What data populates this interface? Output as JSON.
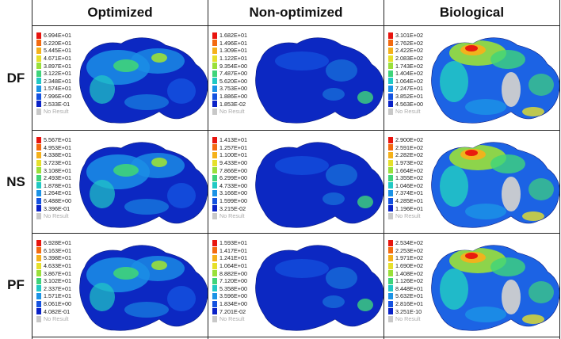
{
  "headers": {
    "col1": "Optimized",
    "col2": "Non-optimized",
    "col3": "Biological"
  },
  "row_labels": {
    "row1": "DF",
    "row2": "NS",
    "row3": "PF"
  },
  "no_result_label": "No Result",
  "legend_colors": [
    "#e8140e",
    "#f36a10",
    "#f5b11a",
    "#e6e02a",
    "#9ae03a",
    "#3fd47a",
    "#21c9c4",
    "#1b93e6",
    "#1452e0",
    "#0a22c8",
    "#0b0aa6",
    "#c8c8c8"
  ],
  "panels": {
    "df_opt": {
      "values": [
        "6.994E+01",
        "6.220E+01",
        "5.445E+01",
        "4.671E+01",
        "3.897E+01",
        "3.122E+01",
        "2.348E+01",
        "1.574E+01",
        "7.996E+00",
        "2.533E-01"
      ]
    },
    "df_non": {
      "values": [
        "1.682E+01",
        "1.496E+01",
        "1.309E+01",
        "1.122E+01",
        "9.354E+00",
        "7.487E+00",
        "5.620E+00",
        "3.753E+00",
        "1.886E+00",
        "1.853E-02"
      ]
    },
    "df_bio": {
      "values": [
        "3.101E+02",
        "2.762E+02",
        "2.422E+02",
        "2.083E+02",
        "1.743E+02",
        "1.404E+02",
        "1.064E+02",
        "7.247E+01",
        "3.852E+01",
        "4.563E+00"
      ]
    },
    "ns_opt": {
      "values": [
        "5.567E+01",
        "4.953E+01",
        "4.338E+01",
        "3.723E+01",
        "3.108E+01",
        "2.493E+01",
        "1.878E+01",
        "1.264E+01",
        "6.488E+00",
        "3.396E-01"
      ]
    },
    "ns_non": {
      "values": [
        "1.413E+01",
        "1.257E+01",
        "1.100E+01",
        "9.433E+00",
        "7.866E+00",
        "6.299E+00",
        "4.733E+00",
        "3.166E+00",
        "1.599E+00",
        "3.215E-02"
      ]
    },
    "ns_bio": {
      "values": [
        "2.900E+02",
        "2.591E+02",
        "2.282E+02",
        "1.973E+02",
        "1.664E+02",
        "1.355E+02",
        "1.046E+02",
        "7.374E+01",
        "4.285E+01",
        "1.196E+01"
      ]
    },
    "pf_opt": {
      "values": [
        "6.928E+01",
        "6.163E+01",
        "5.398E+01",
        "4.633E+01",
        "3.867E+01",
        "3.102E+01",
        "2.337E+01",
        "1.571E+01",
        "8.061E+00",
        "4.082E-01"
      ]
    },
    "pf_non": {
      "values": [
        "1.593E+01",
        "1.417E+01",
        "1.241E+01",
        "1.064E+01",
        "8.882E+00",
        "7.120E+00",
        "5.358E+00",
        "3.596E+00",
        "1.834E+00",
        "7.201E-02"
      ]
    },
    "pf_bio": {
      "values": [
        "2.534E+02",
        "2.253E+02",
        "1.971E+02",
        "1.690E+02",
        "1.408E+02",
        "1.126E+02",
        "8.448E+01",
        "5.632E+01",
        "2.816E+01",
        "3.251E-10"
      ]
    }
  }
}
